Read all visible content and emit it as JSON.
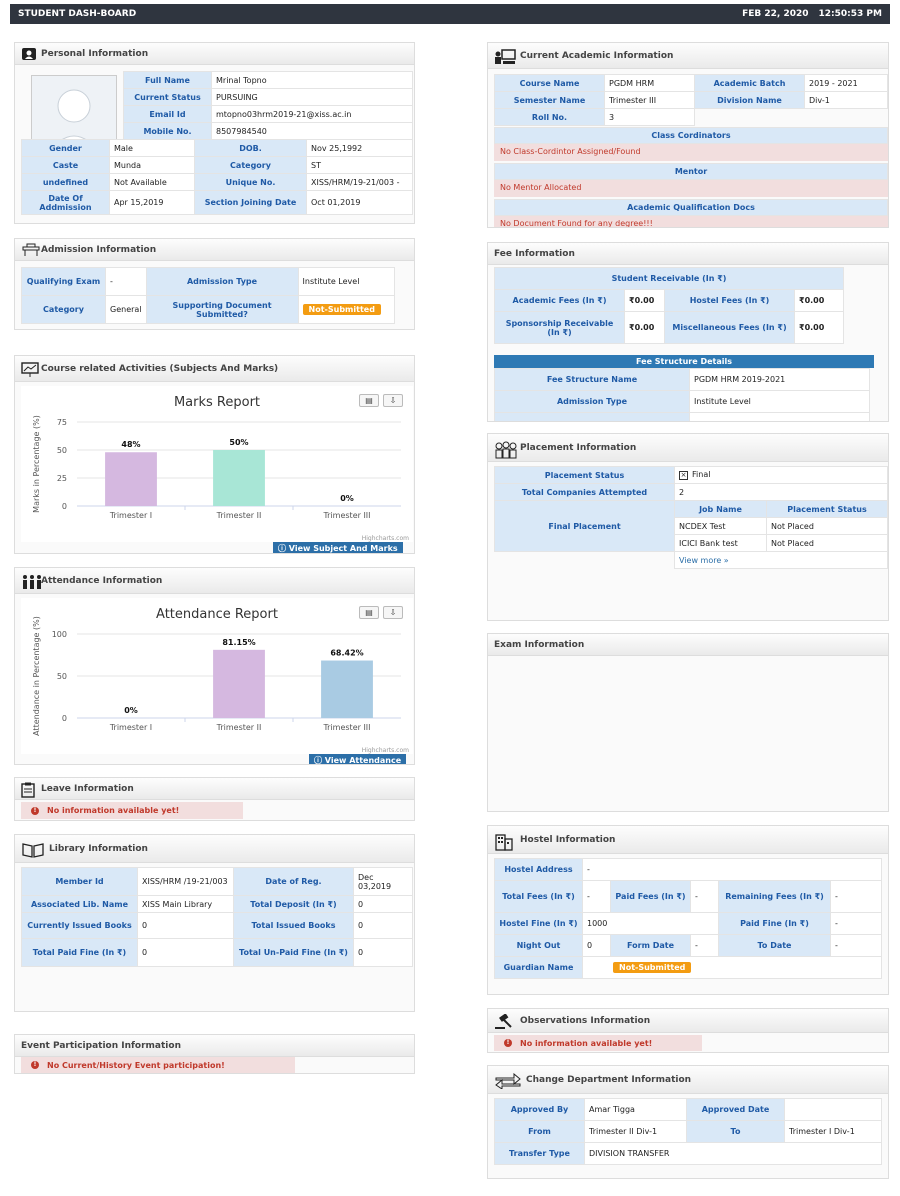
{
  "topbar": {
    "title": "STUDENT DASH-BOARD",
    "date": "FEB 22, 2020",
    "time": "12:50:53 PM"
  },
  "personal": {
    "title": "Personal Information",
    "full_name_l": "Full Name",
    "full_name": "Mrinal Topno",
    "status_l": "Current Status",
    "status": "PURSUING",
    "email_l": "Email Id",
    "email": "mtopno03hrm2019-21@xiss.ac.in",
    "mobile_l": "Mobile No.",
    "mobile": "8507984540",
    "gender_l": "Gender",
    "gender": "Male",
    "dob_l": "DOB.",
    "dob": "Nov 25,1992",
    "caste_l": "Caste",
    "caste": "Munda",
    "category_l": "Category",
    "category": "ST",
    "undef_l": "undefined",
    "undef": "Not Available",
    "unique_l": "Unique No.",
    "unique": "XISS/HRM/19-21/003 -",
    "doa_l": "Date Of Addmission",
    "doa": "Apr 15,2019",
    "sjd_l": "Section Joining Date",
    "sjd": "Oct 01,2019"
  },
  "academic": {
    "title": "Current Academic Information",
    "course_l": "Course Name",
    "course": "PGDM HRM",
    "batch_l": "Academic Batch",
    "batch": "2019 - 2021",
    "sem_l": "Semester Name",
    "sem": "Trimester III",
    "div_l": "Division Name",
    "div": "Div-1",
    "roll_l": "Roll No.",
    "roll": "3",
    "coord_h": "Class Cordinators",
    "coord_msg": "No Class-Cordintor Assigned/Found",
    "mentor_h": "Mentor",
    "mentor_msg": "No Mentor Allocated",
    "docs_h": "Academic Qualification Docs",
    "docs_msg": "No Document Found for any degree!!!"
  },
  "admission": {
    "title": "Admission Information",
    "qual_l": "Qualifying Exam",
    "qual": "-",
    "type_l": "Admission Type",
    "type": "Institute Level",
    "cat_l": "Category",
    "cat": "General",
    "doc_l": "Supporting Document Submitted?",
    "doc": "Not-Submitted"
  },
  "fee": {
    "title": "Fee Information",
    "recv_h": "Student Receivable (In ₹)",
    "acad_l": "Academic Fees (In ₹)",
    "acad": "₹0.00",
    "hostel_l": "Hostel Fees (In ₹)",
    "hostel": "₹0.00",
    "spons_l": "Sponsorship Receivable (In ₹)",
    "spons": "₹0.00",
    "misc_l": "Miscellaneous Fees (In ₹)",
    "misc": "₹0.00",
    "struct_h": "Fee Structure Details",
    "fsname_l": "Fee Structure Name",
    "fsname": "PGDM HRM 2019-2021",
    "adtype_l": "Admission Type",
    "adtype": "Institute Level"
  },
  "course": {
    "title": "Course related Activities (Subjects And Marks)",
    "button": "View Subject And Marks",
    "credit": "Highcharts.com"
  },
  "placement": {
    "title": "Placement Information",
    "status_l": "Placement Status",
    "status": "Final",
    "total_l": "Total Companies Attempted",
    "total": "2",
    "final_l": "Final Placement",
    "job_h": "Job Name",
    "pstatus_h": "Placement Status",
    "jobs": [
      {
        "name": "NCDEX Test",
        "status": "Not Placed"
      },
      {
        "name": "ICICI Bank test",
        "status": "Not Placed"
      }
    ],
    "more": "View more »"
  },
  "attendance": {
    "title": "Attendance Information",
    "button": "View Attendance",
    "credit": "Highcharts.com"
  },
  "exam": {
    "title": "Exam Information"
  },
  "leave": {
    "title": "Leave Information",
    "msg": "No information available yet!"
  },
  "library": {
    "title": "Library Information",
    "member_l": "Member Id",
    "member": "XISS/HRM /19-21/003",
    "reg_l": "Date of Reg.",
    "reg": "Dec 03,2019",
    "lib_l": "Associated Lib. Name",
    "lib": "XISS Main Library",
    "dep_l": "Total Deposit (In ₹)",
    "dep": "0",
    "issued_l": "Currently Issued Books",
    "issued": "0",
    "tib_l": "Total Issued Books",
    "tib": "0",
    "paid_l": "Total Paid Fine (In ₹)",
    "paid": "0",
    "unpaid_l": "Total Un-Paid Fine (In ₹)",
    "unpaid": "0"
  },
  "hostel": {
    "title": "Hostel Information",
    "addr_l": "Hostel Address",
    "addr": "-",
    "tf_l": "Total Fees (In ₹)",
    "tf": "-",
    "pf_l": "Paid Fees (In ₹)",
    "pf": "-",
    "rf_l": "Remaining Fees (In ₹)",
    "rf": "-",
    "hfine_l": "Hostel Fine (In ₹)",
    "hfine": "1000",
    "pfine_l": "Paid Fine (In ₹)",
    "pfine": "-",
    "night_l": "Night Out",
    "night": "0",
    "from_l": "Form Date",
    "from": "-",
    "to_l": "To Date",
    "to": "-",
    "guard_l": "Guardian Name",
    "guard": "Not-Submitted"
  },
  "observations": {
    "title": "Observations Information",
    "msg": "No information available yet!"
  },
  "event": {
    "title": "Event Participation Information",
    "msg": "No Current/History Event participation!"
  },
  "dept": {
    "title": "Change Department Information",
    "appby_l": "Approved By",
    "appby": "Amar Tigga",
    "appdate_l": "Approved Date",
    "appdate": "",
    "from_l": "From",
    "from": "Trimester II Div-1",
    "to_l": "To",
    "to": "Trimester I Div-1",
    "ttype_l": "Transfer Type",
    "ttype": "DIVISION TRANSFER"
  },
  "chart_data": [
    {
      "type": "bar",
      "title": "Marks Report",
      "ylabel": "Marks in Percentage (%)",
      "xlabel": "",
      "categories": [
        "Trimester I",
        "Trimester II",
        "Trimester III"
      ],
      "values": [
        48,
        50,
        0
      ],
      "data_labels": [
        "48%",
        "50%",
        "0%"
      ],
      "colors": [
        "#d5b8e0",
        "#a8e6d6",
        "#9ec8e6"
      ],
      "ylim": [
        0,
        75
      ],
      "yticks": [
        0,
        25,
        50,
        75
      ]
    },
    {
      "type": "bar",
      "title": "Attendance Report",
      "ylabel": "Attendance in Percentage (%)",
      "xlabel": "",
      "categories": [
        "Trimester I",
        "Trimester II",
        "Trimester III"
      ],
      "values": [
        0,
        81.15,
        68.42
      ],
      "data_labels": [
        "0%",
        "81.15%",
        "68.42%"
      ],
      "colors": [
        "#9ec8e6",
        "#d5b8e0",
        "#a9cbe3"
      ],
      "ylim": [
        0,
        100
      ],
      "yticks": [
        0,
        50,
        100
      ]
    }
  ]
}
